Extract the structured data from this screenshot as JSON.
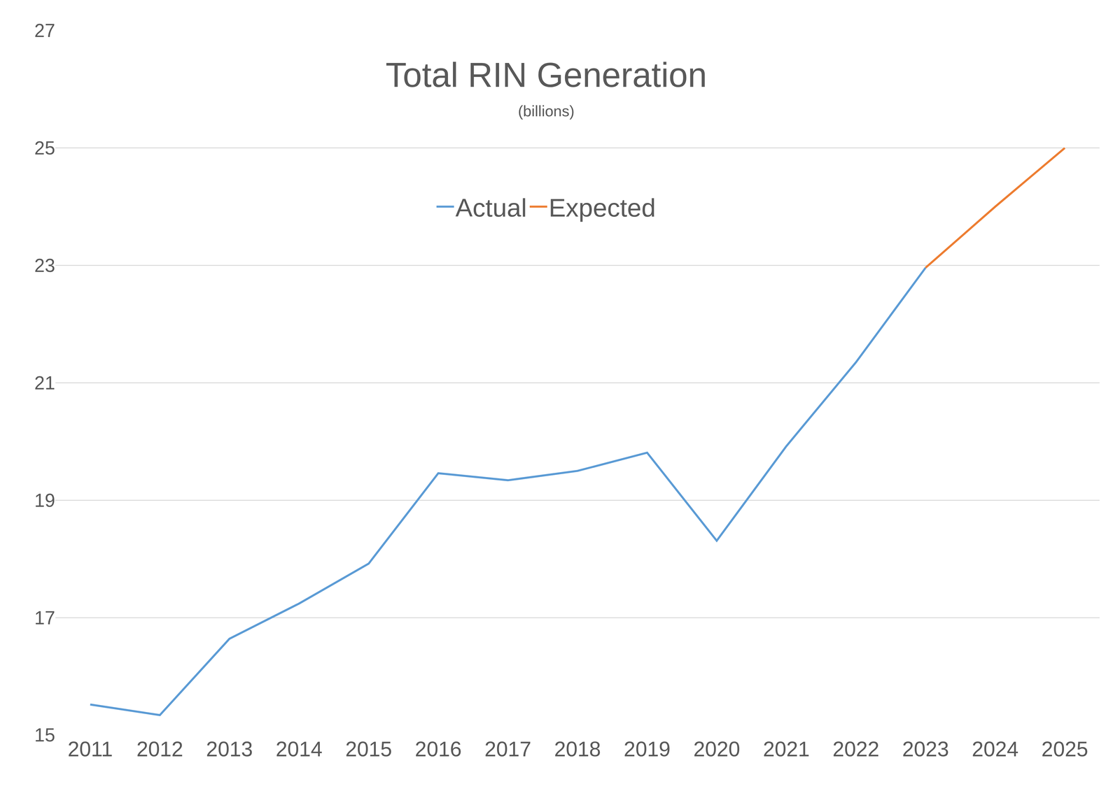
{
  "chart_data": {
    "type": "line",
    "title": "Total RIN Generation",
    "subtitle": "(billions)",
    "categories": [
      "2011",
      "2012",
      "2013",
      "2014",
      "2015",
      "2016",
      "2017",
      "2018",
      "2019",
      "2020",
      "2021",
      "2022",
      "2023",
      "2024",
      "2025"
    ],
    "series": [
      {
        "name": "Actual",
        "color": "#5b9bd5",
        "values": [
          15.52,
          15.34,
          16.64,
          17.24,
          17.92,
          19.46,
          19.34,
          19.5,
          19.81,
          18.31,
          19.92,
          21.35,
          22.96,
          null,
          null
        ]
      },
      {
        "name": "Expected",
        "color": "#ed7d31",
        "values": [
          null,
          null,
          null,
          null,
          null,
          null,
          null,
          null,
          null,
          null,
          null,
          null,
          22.96,
          24.0,
          25.0
        ]
      }
    ],
    "ylim": [
      15,
      27
    ],
    "yticks": [
      15,
      17,
      19,
      21,
      23,
      25,
      27
    ],
    "grid": true,
    "legend": "top"
  }
}
